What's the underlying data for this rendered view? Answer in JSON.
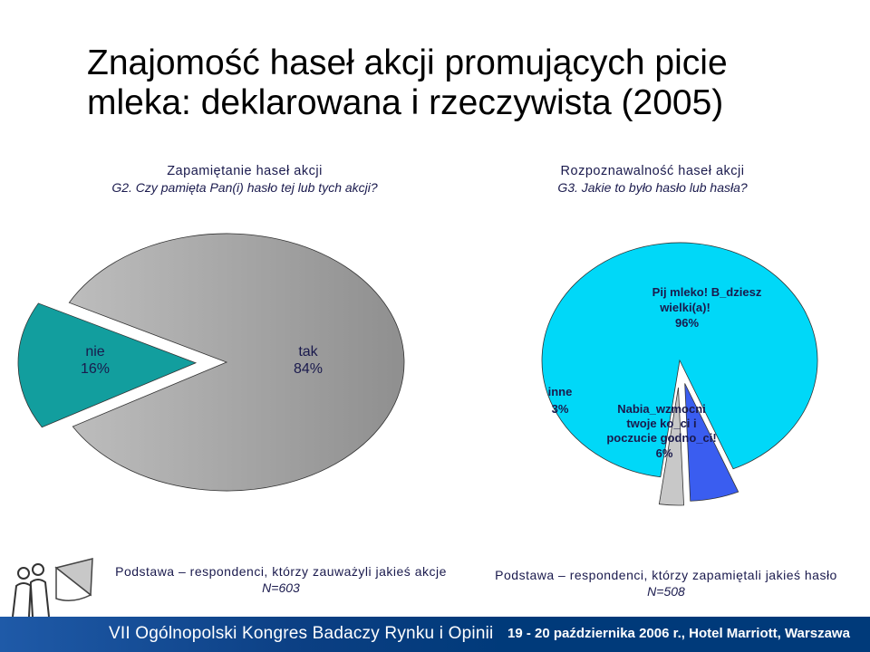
{
  "title": {
    "line1": "Znajomość haseł akcji promujących picie",
    "line2": "mleka: deklarowana i rzeczywista (2005)"
  },
  "subheads": {
    "left": {
      "label": "Zapamiętanie haseł akcji",
      "question": "G2. Czy pamięta Pan(i) hasło tej lub tych akcji?"
    },
    "right": {
      "label": "Rozpoznawalność haseł akcji",
      "question": "G3. Jakie to było hasło lub hasła?"
    }
  },
  "chart_data": [
    {
      "type": "pie",
      "slices": [
        {
          "label": "nie",
          "value": 16,
          "value_label": "16%",
          "color": "#129e9e"
        },
        {
          "label": "tak",
          "value": 84,
          "value_label": "84%",
          "color": "#a6a6a6"
        }
      ]
    },
    {
      "type": "pie",
      "slices": [
        {
          "label": "Pij mleko! B_dziesz wielki(a)!",
          "label_lines": [
            "Pij mleko! B_dziesz",
            "wielki(a)!"
          ],
          "value": 96,
          "value_label": "96%",
          "color": "#00d8f8"
        },
        {
          "label": "Nabia_wzmocni twoje ko_ci i poczucie godno_ci!",
          "label_lines": [
            "Nabia_wzmocni",
            "twoje ko_ci i",
            "poczucie godno_ci!"
          ],
          "value": 6,
          "value_label": "6%",
          "color": "#3a5df0"
        },
        {
          "label": "inne",
          "value": 3,
          "value_label": "3%",
          "color": "#c8c8c8"
        }
      ]
    }
  ],
  "bases": {
    "left": {
      "text": "Podstawa – respondenci, którzy zauważyli jakieś akcje",
      "n": "N=603"
    },
    "right": {
      "text": "Podstawa – respondenci, którzy zapamiętali jakieś hasło",
      "n": "N=508"
    }
  },
  "footer": {
    "left": "VII Ogólnopolski Kongres Badaczy Rynku i Opinii",
    "right": "19 - 20 października 2006 r., Hotel Marriott, Warszawa"
  },
  "colors": {
    "footer_bg": "#003a7a",
    "text_dark": "#1a1a4d"
  }
}
